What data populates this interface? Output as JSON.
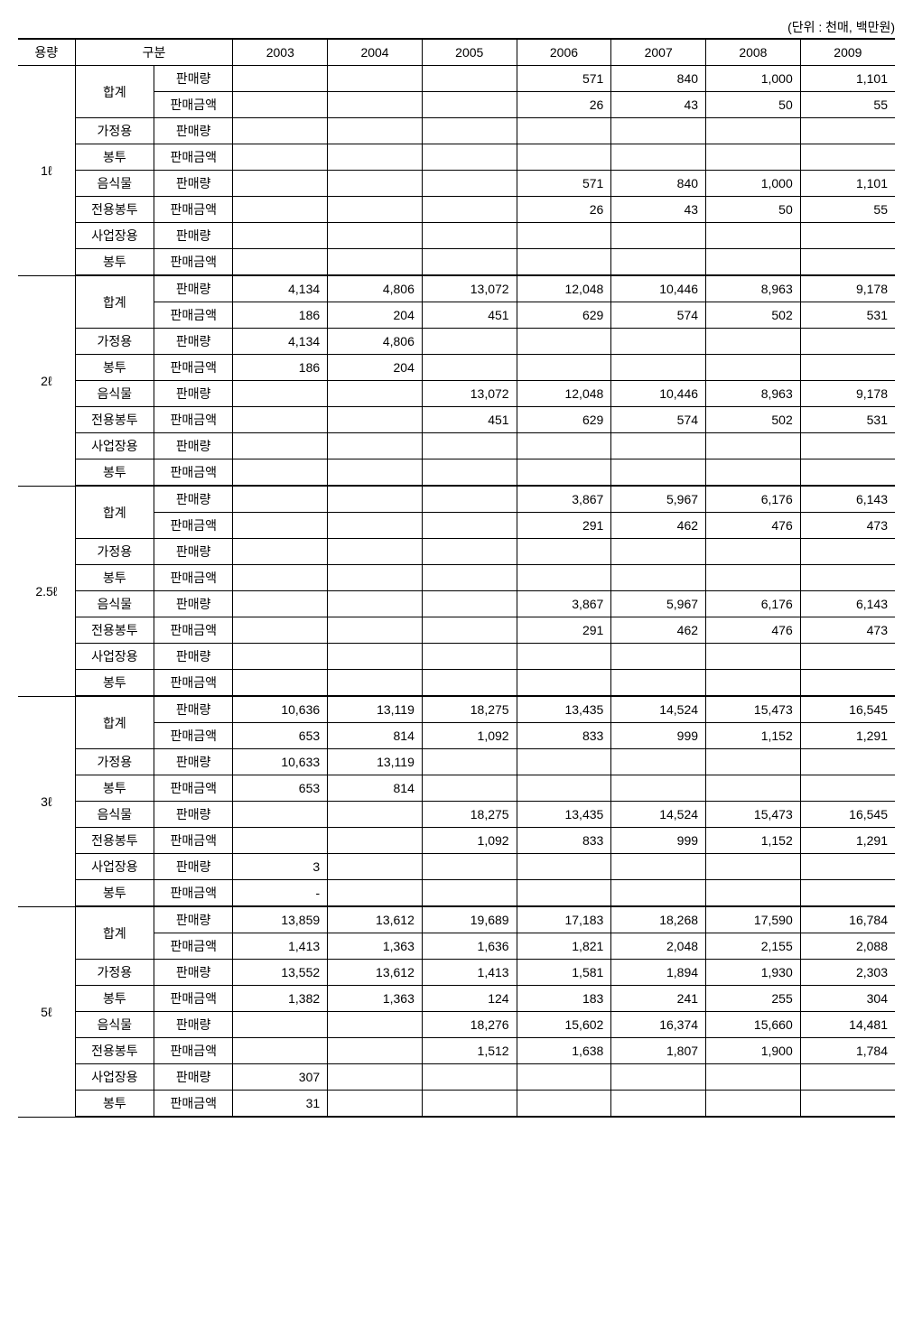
{
  "unit_label": "(단위 : 천매, 백만원)",
  "headers": {
    "capacity": "용량",
    "category": "구분",
    "years": [
      "2003",
      "2004",
      "2005",
      "2006",
      "2007",
      "2008",
      "2009"
    ]
  },
  "categories": {
    "total": "합계",
    "home1": "가정용",
    "home2": "봉투",
    "food1": "음식물",
    "food2": "전용봉투",
    "biz1": "사업장용",
    "biz2": "봉투"
  },
  "metrics": {
    "qty": "판매량",
    "amt": "판매금액"
  },
  "groups": [
    {
      "capacity": "1ℓ",
      "rows": {
        "total_qty": [
          "",
          "",
          "",
          "571",
          "840",
          "1,000",
          "1,101"
        ],
        "total_amt": [
          "",
          "",
          "",
          "26",
          "43",
          "50",
          "55"
        ],
        "home_qty": [
          "",
          "",
          "",
          "",
          "",
          "",
          ""
        ],
        "home_amt": [
          "",
          "",
          "",
          "",
          "",
          "",
          ""
        ],
        "food_qty": [
          "",
          "",
          "",
          "571",
          "840",
          "1,000",
          "1,101"
        ],
        "food_amt": [
          "",
          "",
          "",
          "26",
          "43",
          "50",
          "55"
        ],
        "biz_qty": [
          "",
          "",
          "",
          "",
          "",
          "",
          ""
        ],
        "biz_amt": [
          "",
          "",
          "",
          "",
          "",
          "",
          ""
        ]
      }
    },
    {
      "capacity": "2ℓ",
      "rows": {
        "total_qty": [
          "4,134",
          "4,806",
          "13,072",
          "12,048",
          "10,446",
          "8,963",
          "9,178"
        ],
        "total_amt": [
          "186",
          "204",
          "451",
          "629",
          "574",
          "502",
          "531"
        ],
        "home_qty": [
          "4,134",
          "4,806",
          "",
          "",
          "",
          "",
          ""
        ],
        "home_amt": [
          "186",
          "204",
          "",
          "",
          "",
          "",
          ""
        ],
        "food_qty": [
          "",
          "",
          "13,072",
          "12,048",
          "10,446",
          "8,963",
          "9,178"
        ],
        "food_amt": [
          "",
          "",
          "451",
          "629",
          "574",
          "502",
          "531"
        ],
        "biz_qty": [
          "",
          "",
          "",
          "",
          "",
          "",
          ""
        ],
        "biz_amt": [
          "",
          "",
          "",
          "",
          "",
          "",
          ""
        ]
      }
    },
    {
      "capacity": "2.5ℓ",
      "rows": {
        "total_qty": [
          "",
          "",
          "",
          "3,867",
          "5,967",
          "6,176",
          "6,143"
        ],
        "total_amt": [
          "",
          "",
          "",
          "291",
          "462",
          "476",
          "473"
        ],
        "home_qty": [
          "",
          "",
          "",
          "",
          "",
          "",
          ""
        ],
        "home_amt": [
          "",
          "",
          "",
          "",
          "",
          "",
          ""
        ],
        "food_qty": [
          "",
          "",
          "",
          "3,867",
          "5,967",
          "6,176",
          "6,143"
        ],
        "food_amt": [
          "",
          "",
          "",
          "291",
          "462",
          "476",
          "473"
        ],
        "biz_qty": [
          "",
          "",
          "",
          "",
          "",
          "",
          ""
        ],
        "biz_amt": [
          "",
          "",
          "",
          "",
          "",
          "",
          ""
        ]
      }
    },
    {
      "capacity": "3ℓ",
      "rows": {
        "total_qty": [
          "10,636",
          "13,119",
          "18,275",
          "13,435",
          "14,524",
          "15,473",
          "16,545"
        ],
        "total_amt": [
          "653",
          "814",
          "1,092",
          "833",
          "999",
          "1,152",
          "1,291"
        ],
        "home_qty": [
          "10,633",
          "13,119",
          "",
          "",
          "",
          "",
          ""
        ],
        "home_amt": [
          "653",
          "814",
          "",
          "",
          "",
          "",
          ""
        ],
        "food_qty": [
          "",
          "",
          "18,275",
          "13,435",
          "14,524",
          "15,473",
          "16,545"
        ],
        "food_amt": [
          "",
          "",
          "1,092",
          "833",
          "999",
          "1,152",
          "1,291"
        ],
        "biz_qty": [
          "3",
          "",
          "",
          "",
          "",
          "",
          ""
        ],
        "biz_amt": [
          "-",
          "",
          "",
          "",
          "",
          "",
          ""
        ]
      }
    },
    {
      "capacity": "5ℓ",
      "rows": {
        "total_qty": [
          "13,859",
          "13,612",
          "19,689",
          "17,183",
          "18,268",
          "17,590",
          "16,784"
        ],
        "total_amt": [
          "1,413",
          "1,363",
          "1,636",
          "1,821",
          "2,048",
          "2,155",
          "2,088"
        ],
        "home_qty": [
          "13,552",
          "13,612",
          "1,413",
          "1,581",
          "1,894",
          "1,930",
          "2,303"
        ],
        "home_amt": [
          "1,382",
          "1,363",
          "124",
          "183",
          "241",
          "255",
          "304"
        ],
        "food_qty": [
          "",
          "",
          "18,276",
          "15,602",
          "16,374",
          "15,660",
          "14,481"
        ],
        "food_amt": [
          "",
          "",
          "1,512",
          "1,638",
          "1,807",
          "1,900",
          "1,784"
        ],
        "biz_qty": [
          "307",
          "",
          "",
          "",
          "",
          "",
          ""
        ],
        "biz_amt": [
          "31",
          "",
          "",
          "",
          "",
          "",
          ""
        ]
      }
    }
  ]
}
